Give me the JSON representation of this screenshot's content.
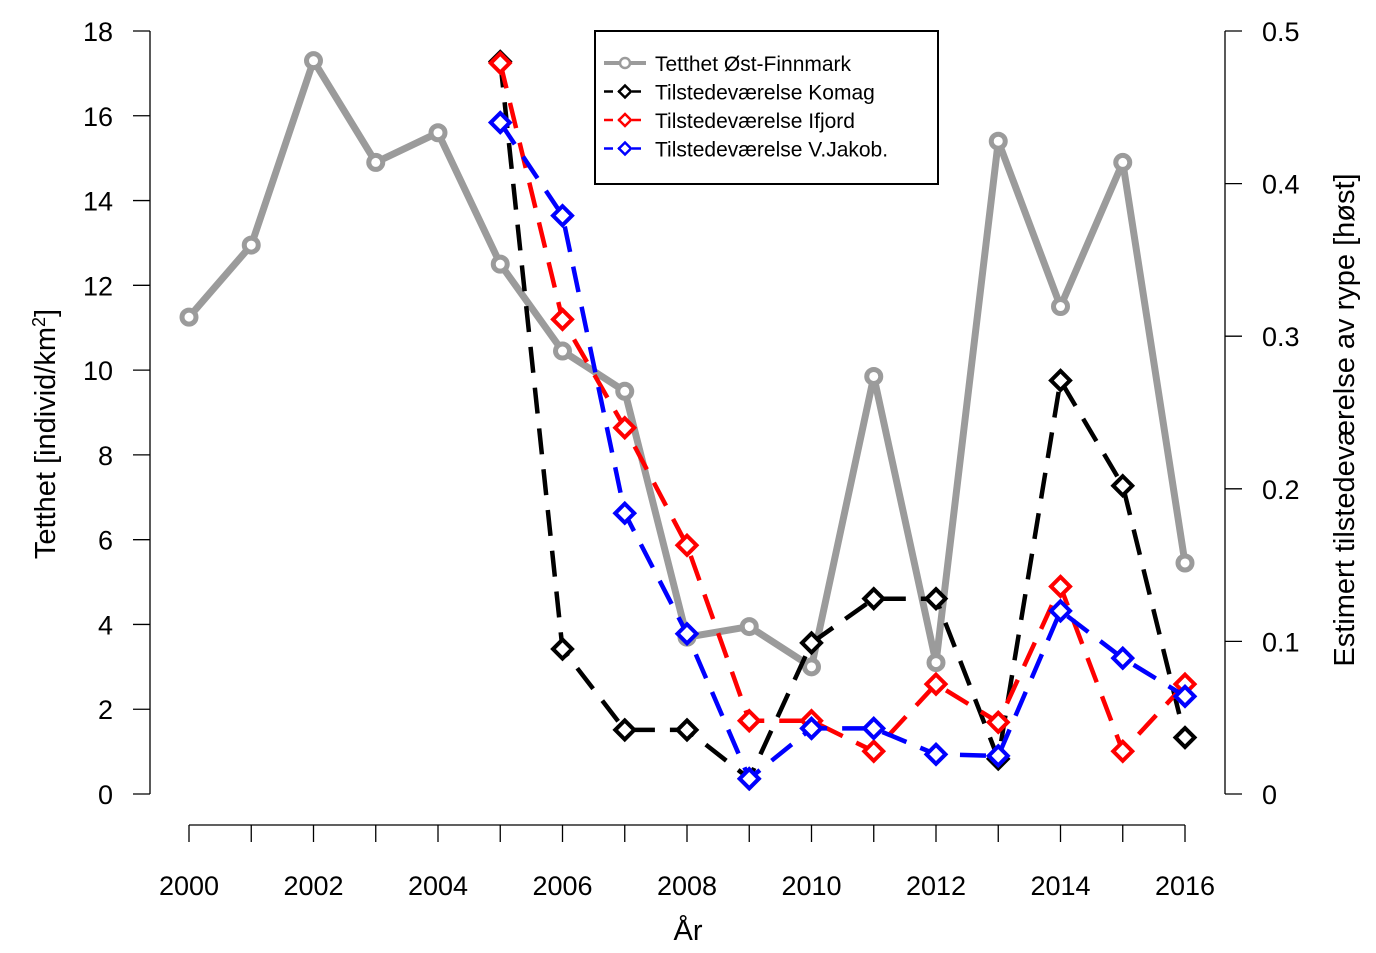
{
  "chart_data": {
    "type": "line",
    "title": "",
    "xlabel": "År",
    "ylabel_left": "Tetthet [individ/km",
    "ylabel_left_sup": "2",
    "ylabel_left_end": "]",
    "ylabel_right": "Estimert tilstedeværelse av rype [høst]",
    "xlim": [
      2000,
      2016
    ],
    "x_ticks": [
      2000,
      2001,
      2002,
      2003,
      2004,
      2005,
      2006,
      2007,
      2008,
      2009,
      2010,
      2011,
      2012,
      2013,
      2014,
      2015,
      2016
    ],
    "x_tick_labels": [
      "2000",
      "",
      "2002",
      "",
      "2004",
      "",
      "2006",
      "",
      "2008",
      "",
      "2010",
      "",
      "2012",
      "",
      "2014",
      "",
      "2016"
    ],
    "ylim_left": [
      0,
      18
    ],
    "y_ticks_left": [
      0,
      2,
      4,
      6,
      8,
      10,
      12,
      14,
      16,
      18
    ],
    "y_tick_labels_left": [
      "0",
      "2",
      "4",
      "6",
      "8",
      "10",
      "12",
      "14",
      "16",
      "18"
    ],
    "ylim_right": [
      0,
      0.5
    ],
    "y_ticks_right": [
      0,
      0.1,
      0.2,
      0.3,
      0.4,
      0.5
    ],
    "y_tick_labels_right": [
      "0",
      "0.1",
      "0.2",
      "0.3",
      "0.4",
      "0.5"
    ],
    "legend_position": "top-center",
    "grid": false,
    "series": [
      {
        "name": "Tetthet Øst-Finnmark",
        "axis": "left",
        "color": "#9b9b9b",
        "style": "solid",
        "marker": "circle",
        "x": [
          2000,
          2001,
          2002,
          2003,
          2004,
          2005,
          2006,
          2007,
          2008,
          2009,
          2010,
          2011,
          2012,
          2013,
          2014,
          2015,
          2016
        ],
        "values": [
          11.25,
          12.95,
          17.3,
          14.9,
          15.6,
          12.5,
          10.45,
          9.5,
          3.7,
          3.95,
          3.0,
          9.85,
          3.1,
          15.4,
          11.5,
          14.9,
          5.45
        ]
      },
      {
        "name": "Tilstedeværelse Komag",
        "axis": "right",
        "color": "#000000",
        "style": "dashed",
        "marker": "diamond",
        "x": [
          2005,
          2006,
          2007,
          2008,
          2009,
          2010,
          2011,
          2012,
          2013,
          2014,
          2015,
          2016
        ],
        "values": [
          0.48,
          0.095,
          0.042,
          0.042,
          0.01,
          0.099,
          0.128,
          0.128,
          0.023,
          0.271,
          0.202,
          0.037
        ]
      },
      {
        "name": "Tilstedeværelse Ifjord",
        "axis": "right",
        "color": "#ff0000",
        "style": "dashed",
        "marker": "diamond",
        "x": [
          2005,
          2006,
          2007,
          2008,
          2009,
          2010,
          2011,
          2012,
          2013,
          2014,
          2015,
          2016
        ],
        "values": [
          0.479,
          0.311,
          0.24,
          0.163,
          0.048,
          0.048,
          0.028,
          0.072,
          0.047,
          0.136,
          0.028,
          0.072
        ]
      },
      {
        "name": "Tilstedeværelse V.Jakob.",
        "axis": "right",
        "color": "#0000ff",
        "style": "dashed",
        "marker": "diamond",
        "x": [
          2005,
          2006,
          2007,
          2008,
          2009,
          2010,
          2011,
          2012,
          2013,
          2014,
          2015,
          2016
        ],
        "values": [
          0.44,
          0.379,
          0.184,
          0.105,
          0.01,
          0.043,
          0.043,
          0.026,
          0.025,
          0.12,
          0.089,
          0.064
        ]
      }
    ]
  }
}
